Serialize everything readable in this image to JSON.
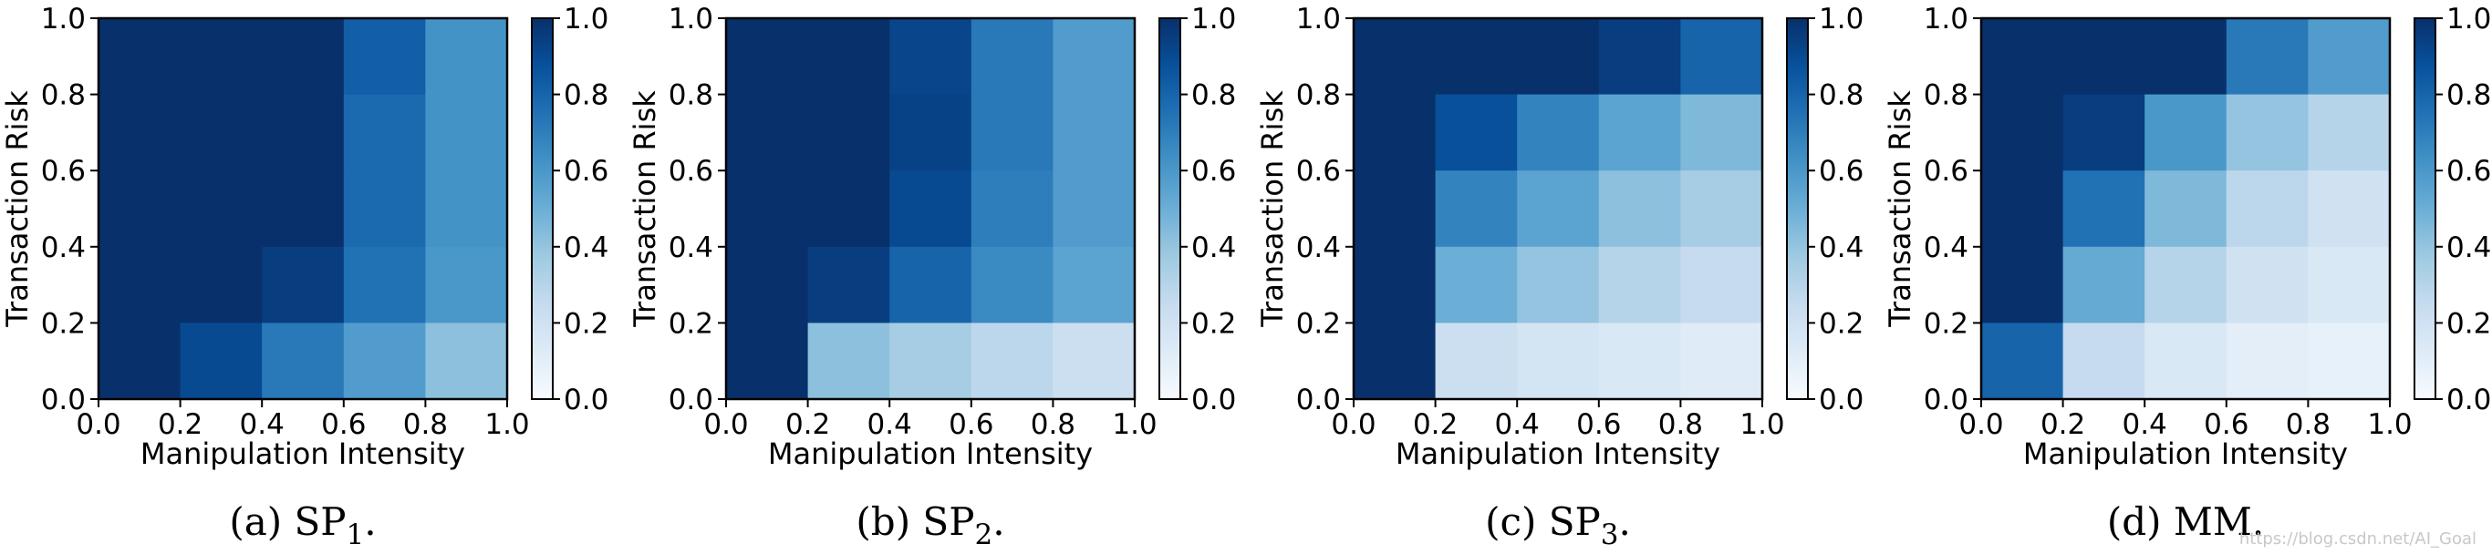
{
  "chart_data": [
    {
      "type": "heatmap",
      "caption_prefix": "(a) SP",
      "caption_sub": "1",
      "caption_suffix": ".",
      "xlabel": "Manipulation Intensity",
      "ylabel": "Transaction Risk",
      "x_ticks": [
        "0.0",
        "0.2",
        "0.4",
        "0.6",
        "0.8",
        "1.0"
      ],
      "y_ticks": [
        "0.0",
        "0.2",
        "0.4",
        "0.6",
        "0.8",
        "1.0"
      ],
      "colorbar_ticks": [
        "0.0",
        "0.2",
        "0.4",
        "0.6",
        "0.8",
        "1.0"
      ],
      "xlim": [
        0,
        1
      ],
      "ylim": [
        0,
        1
      ],
      "clim": [
        0,
        1
      ],
      "colormap": "Blues",
      "rows_top_to_bottom": [
        [
          1.0,
          1.0,
          1.0,
          0.82,
          0.62
        ],
        [
          1.0,
          1.0,
          1.0,
          0.78,
          0.62
        ],
        [
          1.0,
          1.0,
          1.0,
          0.78,
          0.62
        ],
        [
          1.0,
          1.0,
          0.95,
          0.75,
          0.6
        ],
        [
          1.0,
          0.9,
          0.72,
          0.58,
          0.42
        ]
      ]
    },
    {
      "type": "heatmap",
      "caption_prefix": "(b) SP",
      "caption_sub": "2",
      "caption_suffix": ".",
      "xlabel": "Manipulation Intensity",
      "ylabel": "Transaction Risk",
      "x_ticks": [
        "0.0",
        "0.2",
        "0.4",
        "0.6",
        "0.8",
        "1.0"
      ],
      "y_ticks": [
        "0.0",
        "0.2",
        "0.4",
        "0.6",
        "0.8",
        "1.0"
      ],
      "colorbar_ticks": [
        "0.0",
        "0.2",
        "0.4",
        "0.6",
        "0.8",
        "1.0"
      ],
      "xlim": [
        0,
        1
      ],
      "ylim": [
        0,
        1
      ],
      "clim": [
        0,
        1
      ],
      "colormap": "Blues",
      "rows_top_to_bottom": [
        [
          1.0,
          1.0,
          0.92,
          0.72,
          0.58
        ],
        [
          1.0,
          1.0,
          0.93,
          0.72,
          0.58
        ],
        [
          1.0,
          1.0,
          0.9,
          0.7,
          0.58
        ],
        [
          1.0,
          0.95,
          0.8,
          0.65,
          0.55
        ],
        [
          1.0,
          0.42,
          0.35,
          0.28,
          0.22
        ]
      ]
    },
    {
      "type": "heatmap",
      "caption_prefix": "(c) SP",
      "caption_sub": "3",
      "caption_suffix": ".",
      "xlabel": "Manipulation Intensity",
      "ylabel": "Transaction Risk",
      "x_ticks": [
        "0.0",
        "0.2",
        "0.4",
        "0.6",
        "0.8",
        "1.0"
      ],
      "y_ticks": [
        "0.0",
        "0.2",
        "0.4",
        "0.6",
        "0.8",
        "1.0"
      ],
      "colorbar_ticks": [
        "0.0",
        "0.2",
        "0.4",
        "0.6",
        "0.8",
        "1.0"
      ],
      "xlim": [
        0,
        1
      ],
      "ylim": [
        0,
        1
      ],
      "clim": [
        0,
        1
      ],
      "colormap": "Blues",
      "rows_top_to_bottom": [
        [
          1.0,
          1.0,
          1.0,
          0.95,
          0.8
        ],
        [
          1.0,
          0.88,
          0.68,
          0.55,
          0.45
        ],
        [
          1.0,
          0.68,
          0.55,
          0.42,
          0.35
        ],
        [
          1.0,
          0.5,
          0.4,
          0.3,
          0.25
        ],
        [
          1.0,
          0.22,
          0.18,
          0.15,
          0.12
        ]
      ]
    },
    {
      "type": "heatmap",
      "caption_prefix": "(d) MM.",
      "caption_sub": "",
      "caption_suffix": "",
      "xlabel": "Manipulation Intensity",
      "ylabel": "Transaction Risk",
      "x_ticks": [
        "0.0",
        "0.2",
        "0.4",
        "0.6",
        "0.8",
        "1.0"
      ],
      "y_ticks": [
        "0.0",
        "0.2",
        "0.4",
        "0.6",
        "0.8",
        "1.0"
      ],
      "colorbar_ticks": [
        "0.0",
        "0.2",
        "0.4",
        "0.6",
        "0.8",
        "1.0"
      ],
      "xlim": [
        0,
        1
      ],
      "ylim": [
        0,
        1
      ],
      "clim": [
        0,
        1
      ],
      "colormap": "Blues",
      "rows_top_to_bottom": [
        [
          1.0,
          1.0,
          1.0,
          0.72,
          0.58
        ],
        [
          1.0,
          0.95,
          0.6,
          0.4,
          0.3
        ],
        [
          1.0,
          0.75,
          0.45,
          0.28,
          0.2
        ],
        [
          1.0,
          0.52,
          0.3,
          0.2,
          0.15
        ],
        [
          0.8,
          0.25,
          0.15,
          0.1,
          0.08
        ]
      ]
    }
  ],
  "colormap_stops": [
    "#f7fbff",
    "#deebf7",
    "#c6dbef",
    "#9ecae1",
    "#6baed6",
    "#4292c6",
    "#2171b5",
    "#08519c",
    "#08306b"
  ],
  "watermark": "https://blog.csdn.net/AI_Goal"
}
